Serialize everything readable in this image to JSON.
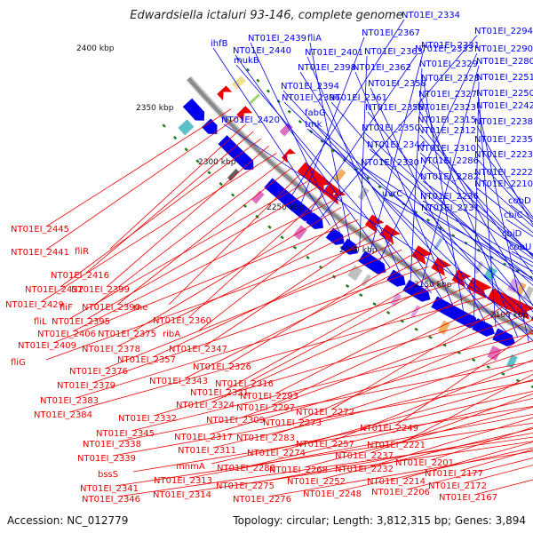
{
  "title": "Edwardsiella ictaluri 93-146, complete genome",
  "footer": {
    "accession": "Accession: NC_012779",
    "summary": "Topology: circular; Length: 3,812,315 bp; Genes: 3,894"
  },
  "colors": {
    "forward": "#0000ee",
    "reverse": "#ee0000",
    "backbone": "#8a8a8a",
    "tick": "#208020"
  },
  "kbp_ticks": [
    "2100 kbp",
    "2150 kbp",
    "2200 kbp",
    "2250 kbp",
    "2300 kbp",
    "2350 kbp",
    "2400 kbp"
  ],
  "forward_labels": [
    "NT01EI_2334",
    "NT01EI_2367",
    "NT01EI_2333",
    "NT01EI_2294",
    "ihfB",
    "NT01EI_2439",
    "fliA",
    "NT01EI_2363",
    "NT01EI_2331",
    "NT01EI_2290",
    "NT01EI_2440",
    "NT01EI_2401",
    "NT01EI_2329",
    "NT01EI_2280",
    "mukB",
    "NT01EI_2398",
    "NT01EI_2362",
    "NT01EI_2328",
    "NT01EI_2251",
    "NT01EI_2358",
    "NT01EI_2250",
    "NT01EI_2394",
    "NT01EI_2327",
    "NT01EI_2242",
    "NT01EI_2396",
    "NT01EI_2361",
    "NT01EI_2323",
    "NT01EI_2355",
    "fabG",
    "NT01EI_2420",
    "NT01EI_2315",
    "NT01EI_2238",
    "tmk",
    "NT01EI_2350",
    "NT01EI_2312",
    "NT01EI_2235",
    "NT01EI_2344",
    "NT01EI_2310",
    "NT01EI_2223",
    "NT01EI_2286",
    "NT01EI_2330",
    "NT01EI_2222",
    "NT01EI_2282",
    "NT01EI_2210",
    "uvrC",
    "NT01EI_2236",
    "cobD",
    "NT01EI_2231",
    "cbiC",
    "cbiD",
    "cobU"
  ],
  "reverse_labels": [
    "NT01EI_2445",
    "NT01EI_2441",
    "fliR",
    "NT01EI_2416",
    "NT01EI_2432",
    "NT01EI_2399",
    "NT01EI_2429",
    "fliF",
    "NT01EI_2390",
    "rne",
    "fliL",
    "NT01EI_2395",
    "NT01EI_2360",
    "NT01EI_2406",
    "NT01EI_2375",
    "ribA",
    "NT01EI_2409",
    "NT01EI_2378",
    "NT01EI_2347",
    "fliG",
    "NT01EI_2357",
    "NT01EI_2376",
    "NT01EI_2326",
    "NT01EI_2343",
    "NT01EI_2379",
    "NT01EI_2321",
    "NT01EI_2316",
    "NT01EI_2383",
    "NT01EI_2324",
    "NT01EI_2293",
    "NT01EI_2384",
    "NT01EI_2297",
    "NT01EI_2272",
    "NT01EI_2332",
    "NT01EI_2309",
    "NT01EI_2273",
    "NT01EI_2249",
    "NT01EI_2345",
    "NT01EI_2317",
    "NT01EI_2283",
    "NT01EI_2257",
    "NT01EI_2221",
    "NT01EI_2338",
    "NT01EI_2311",
    "NT01EI_2274",
    "NT01EI_2237",
    "NT01EI_2339",
    "mnmA",
    "NT01EI_2288",
    "NT01EI_2268",
    "NT01EI_2232",
    "NT01EI_2201",
    "bssS",
    "NT01EI_2313",
    "NT01EI_2252",
    "NT01EI_2214",
    "NT01EI_2177",
    "NT01EI_2341",
    "NT01EI_2275",
    "NT01EI_2248",
    "NT01EI_2206",
    "NT01EI_2172",
    "NT01EI_2346",
    "NT01EI_2314",
    "NT01EI_2276",
    "NT01EI_2167"
  ]
}
